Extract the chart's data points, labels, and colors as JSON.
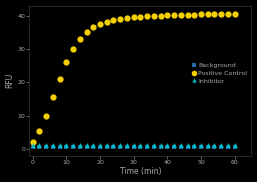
{
  "title": "",
  "xlabel": "Time (min)",
  "ylabel": "RFU",
  "background_color": "#000000",
  "axes_color": "#000000",
  "text_color": "#aaaaaa",
  "grid_color": "#222222",
  "xlim": [
    -1,
    65
  ],
  "ylim": [
    -2,
    43
  ],
  "xticks": [
    0,
    10,
    20,
    30,
    40,
    50,
    60
  ],
  "yticks": [
    0,
    10,
    20,
    30,
    40
  ],
  "x_data": [
    0,
    2,
    4,
    6,
    8,
    10,
    12,
    14,
    16,
    18,
    20,
    22,
    24,
    26,
    28,
    30,
    32,
    34,
    36,
    38,
    40,
    42,
    44,
    46,
    48,
    50,
    52,
    54,
    56,
    58,
    60
  ],
  "positive_control": [
    2,
    5.5,
    10,
    15.5,
    21,
    26,
    30,
    33,
    35,
    36.5,
    37.5,
    38.2,
    38.7,
    39.0,
    39.3,
    39.5,
    39.7,
    39.8,
    39.9,
    40.0,
    40.1,
    40.2,
    40.2,
    40.3,
    40.3,
    40.4,
    40.4,
    40.4,
    40.4,
    40.5,
    40.5
  ],
  "background": [
    0.5,
    0.5,
    0.5,
    0.5,
    0.5,
    0.5,
    0.5,
    0.5,
    0.5,
    0.5,
    0.5,
    0.5,
    0.5,
    0.5,
    0.5,
    0.5,
    0.5,
    0.5,
    0.5,
    0.5,
    0.5,
    0.5,
    0.5,
    0.5,
    0.5,
    0.5,
    0.5,
    0.5,
    0.5,
    0.5,
    0.5
  ],
  "inhibitor": [
    1.2,
    1.2,
    1.2,
    1.2,
    1.2,
    1.2,
    1.2,
    1.2,
    1.2,
    1.2,
    1.2,
    1.2,
    1.2,
    1.2,
    1.2,
    1.2,
    1.2,
    1.2,
    1.2,
    1.2,
    1.2,
    1.2,
    1.2,
    1.2,
    1.2,
    1.2,
    1.2,
    1.2,
    1.2,
    1.2,
    1.2
  ],
  "positive_color": "#f5d000",
  "background_marker_color": "#1e6fa8",
  "inhibitor_color": "#00bfc8",
  "legend_labels": [
    "Background",
    "Positive Control",
    "Inhibitor"
  ],
  "legend_fontsize": 4.5,
  "tick_fontsize": 4.5,
  "label_fontsize": 5.5,
  "spine_color": "#444444",
  "marker_bg_size": 2.5,
  "marker_pc_size": 4.5,
  "marker_inh_size": 3.5
}
